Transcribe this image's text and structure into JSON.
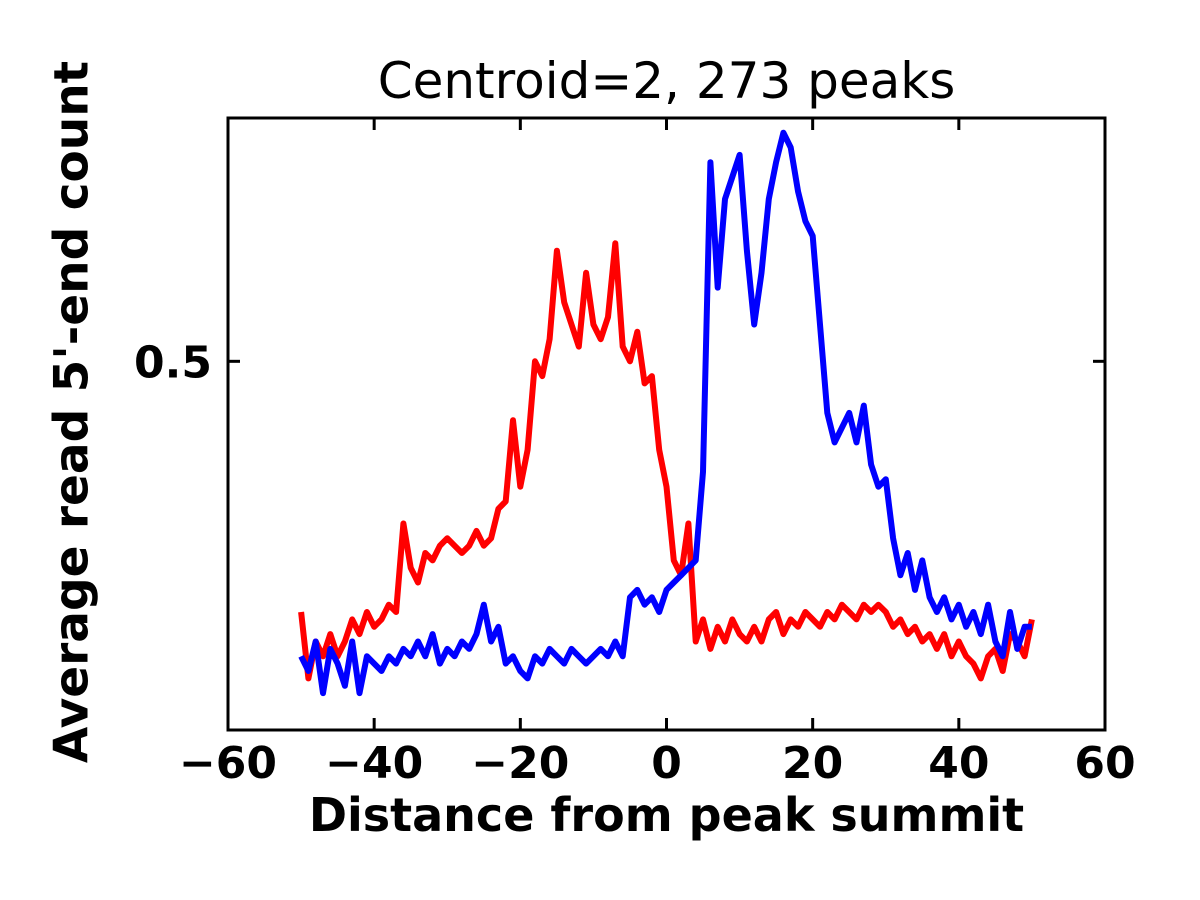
{
  "title": "Centroid=2, 273 peaks",
  "x_axis": {
    "label": "Distance from peak summit",
    "tick_labels": [
      "−60",
      "−40",
      "−20",
      "0",
      "20",
      "40",
      "60"
    ],
    "tick_values": [
      -60,
      -40,
      -20,
      0,
      20,
      40,
      60
    ]
  },
  "y_axis": {
    "label": "Average read 5'-end count",
    "tick_labels": [
      "0.5"
    ],
    "tick_values": [
      0.5
    ]
  },
  "chart_data": {
    "type": "line",
    "title": "Centroid=2, 273 peaks",
    "xlabel": "Distance from peak summit",
    "ylabel": "Average read 5'-end count",
    "xlim": [
      -60,
      60
    ],
    "ylim": [
      0,
      0.83
    ],
    "grid": false,
    "legend": "none",
    "x": [
      -50,
      -49,
      -48,
      -47,
      -46,
      -45,
      -44,
      -43,
      -42,
      -41,
      -40,
      -39,
      -38,
      -37,
      -36,
      -35,
      -34,
      -33,
      -32,
      -31,
      -30,
      -29,
      -28,
      -27,
      -26,
      -25,
      -24,
      -23,
      -22,
      -21,
      -20,
      -19,
      -18,
      -17,
      -16,
      -15,
      -14,
      -13,
      -12,
      -11,
      -10,
      -9,
      -8,
      -7,
      -6,
      -5,
      -4,
      -3,
      -2,
      -1,
      0,
      1,
      2,
      3,
      4,
      5,
      6,
      7,
      8,
      9,
      10,
      11,
      12,
      13,
      14,
      15,
      16,
      17,
      18,
      19,
      20,
      21,
      22,
      23,
      24,
      25,
      26,
      27,
      28,
      29,
      30,
      31,
      32,
      33,
      34,
      35,
      36,
      37,
      38,
      39,
      40,
      41,
      42,
      43,
      44,
      45,
      46,
      47,
      48,
      49,
      50
    ],
    "series": [
      {
        "name": "red-series",
        "color": "#ff0000",
        "values": [
          0.16,
          0.07,
          0.12,
          0.1,
          0.13,
          0.1,
          0.12,
          0.15,
          0.13,
          0.16,
          0.14,
          0.15,
          0.17,
          0.16,
          0.28,
          0.22,
          0.2,
          0.24,
          0.23,
          0.25,
          0.26,
          0.25,
          0.24,
          0.25,
          0.27,
          0.25,
          0.26,
          0.3,
          0.31,
          0.42,
          0.33,
          0.38,
          0.5,
          0.48,
          0.53,
          0.65,
          0.58,
          0.55,
          0.52,
          0.62,
          0.55,
          0.53,
          0.56,
          0.66,
          0.52,
          0.5,
          0.54,
          0.47,
          0.48,
          0.38,
          0.33,
          0.23,
          0.21,
          0.28,
          0.12,
          0.15,
          0.11,
          0.14,
          0.12,
          0.15,
          0.13,
          0.12,
          0.14,
          0.12,
          0.15,
          0.16,
          0.13,
          0.15,
          0.14,
          0.16,
          0.15,
          0.14,
          0.16,
          0.15,
          0.17,
          0.16,
          0.15,
          0.17,
          0.16,
          0.17,
          0.16,
          0.14,
          0.15,
          0.13,
          0.14,
          0.12,
          0.13,
          0.11,
          0.13,
          0.1,
          0.12,
          0.1,
          0.09,
          0.07,
          0.1,
          0.11,
          0.08,
          0.13,
          0.12,
          0.1,
          0.15
        ]
      },
      {
        "name": "blue-series",
        "color": "#0000ff",
        "values": [
          0.1,
          0.08,
          0.12,
          0.05,
          0.11,
          0.09,
          0.06,
          0.12,
          0.05,
          0.1,
          0.09,
          0.08,
          0.1,
          0.09,
          0.11,
          0.1,
          0.12,
          0.1,
          0.13,
          0.09,
          0.11,
          0.1,
          0.12,
          0.11,
          0.13,
          0.17,
          0.12,
          0.14,
          0.09,
          0.1,
          0.08,
          0.07,
          0.1,
          0.09,
          0.11,
          0.1,
          0.09,
          0.11,
          0.1,
          0.09,
          0.1,
          0.11,
          0.1,
          0.12,
          0.1,
          0.18,
          0.19,
          0.17,
          0.18,
          0.16,
          0.19,
          0.2,
          0.21,
          0.22,
          0.23,
          0.35,
          0.77,
          0.6,
          0.72,
          0.75,
          0.78,
          0.65,
          0.55,
          0.62,
          0.72,
          0.77,
          0.81,
          0.79,
          0.73,
          0.69,
          0.67,
          0.55,
          0.43,
          0.39,
          0.41,
          0.43,
          0.39,
          0.44,
          0.36,
          0.33,
          0.34,
          0.26,
          0.21,
          0.24,
          0.19,
          0.23,
          0.18,
          0.16,
          0.18,
          0.15,
          0.17,
          0.14,
          0.16,
          0.13,
          0.17,
          0.12,
          0.1,
          0.16,
          0.11,
          0.14,
          0.14
        ]
      }
    ]
  }
}
